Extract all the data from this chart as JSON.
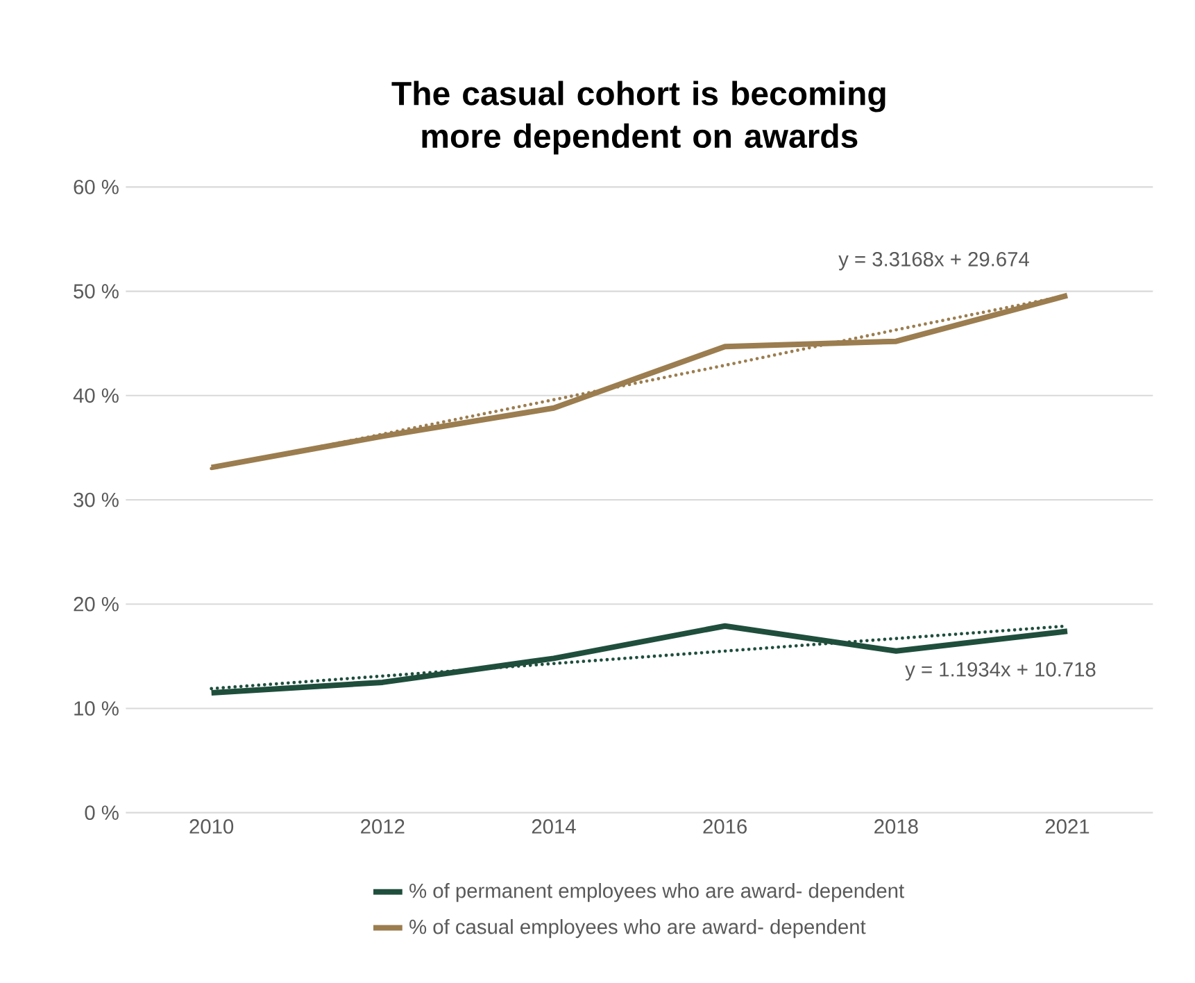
{
  "chart_data": {
    "type": "line",
    "title": "The casual cohort is becoming more dependent on awards",
    "categories": [
      "2010",
      "2012",
      "2014",
      "2016",
      "2018",
      "2021"
    ],
    "series": [
      {
        "name": "% of permanent employees who are award- dependent",
        "color": "#1f4e3d",
        "values": [
          11.5,
          12.5,
          14.8,
          17.9,
          15.5,
          17.4
        ]
      },
      {
        "name": "% of casual employees who are award- dependent",
        "color": "#9b7d4f",
        "values": [
          33.1,
          36.1,
          38.8,
          44.7,
          45.2,
          49.6
        ]
      },
      {
        "color": "#9b7d4f",
        "line_style": "dotted",
        "values": [
          33.0,
          36.3,
          39.6,
          42.9,
          46.3,
          49.6
        ]
      },
      {
        "color": "#1f4e3d",
        "line_style": "dotted",
        "values": [
          11.9,
          13.1,
          14.3,
          15.5,
          16.7,
          17.9
        ]
      }
    ],
    "annotations": [
      "y = 3.3168x + 29.674",
      "y = 1.1934x + 10.718"
    ],
    "ylim": [
      0,
      60
    ],
    "yticks": [
      {
        "value": 0,
        "label": "0 %"
      },
      {
        "value": 10,
        "label": "10 %"
      },
      {
        "value": 20,
        "label": "20 %"
      },
      {
        "value": 30,
        "label": "30 %"
      },
      {
        "value": 40,
        "label": "40 %"
      },
      {
        "value": 50,
        "label": "50 %"
      },
      {
        "value": 60,
        "label": "60 %"
      }
    ],
    "grid": "y",
    "legend": "bottom",
    "line_style": "solid",
    "marker": "none"
  }
}
